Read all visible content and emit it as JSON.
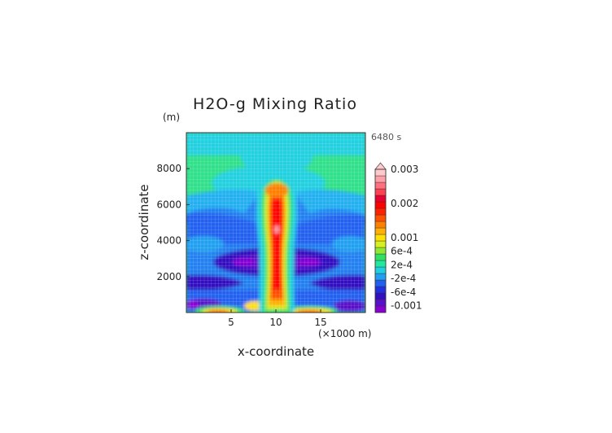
{
  "chart_data": {
    "type": "heatmap",
    "title": "H2O-g Mixing Ratio",
    "xlabel": "x-coordinate",
    "ylabel": "z-coordinate",
    "y_unit": "(m)",
    "x_unit": "(×1000 m)",
    "time_label": "6480 s",
    "xlim": [
      0,
      20
    ],
    "ylim": [
      0,
      10000
    ],
    "x_ticks": [
      5,
      10,
      15
    ],
    "y_ticks": [
      2000,
      4000,
      6000,
      8000
    ],
    "grid": true,
    "colorbar": {
      "labels": [
        {
          "text": "0.003",
          "value": 0.003
        },
        {
          "text": "0.002",
          "value": 0.002
        },
        {
          "text": "0.001",
          "value": 0.001
        },
        {
          "text": "6e-4",
          "value": 0.0006
        },
        {
          "text": "2e-4",
          "value": 0.0002
        },
        {
          "text": "-2e-4",
          "value": -0.0002
        },
        {
          "text": "-6e-4",
          "value": -0.0006
        },
        {
          "text": "-0.001",
          "value": -0.001
        }
      ],
      "levels": [
        -0.0012,
        -0.001,
        -0.0008,
        -0.0006,
        -0.0004,
        -0.0002,
        0,
        0.0002,
        0.0004,
        0.0006,
        0.0008,
        0.001,
        0.0012,
        0.0014,
        0.0016,
        0.0018,
        0.002,
        0.0022,
        0.0024,
        0.0026,
        0.0028,
        0.003
      ],
      "colors": [
        "#8a00d4",
        "#5a10c8",
        "#3010c0",
        "#2030e0",
        "#2060f0",
        "#20a0f0",
        "#20d0e0",
        "#20e8a0",
        "#30e060",
        "#90e830",
        "#d8f020",
        "#ffe000",
        "#ffb000",
        "#ff8000",
        "#ff5000",
        "#ff2000",
        "#ff0000",
        "#e80030",
        "#ff4050",
        "#ff7080",
        "#ffa0a8",
        "#ffc8cc"
      ]
    }
  }
}
